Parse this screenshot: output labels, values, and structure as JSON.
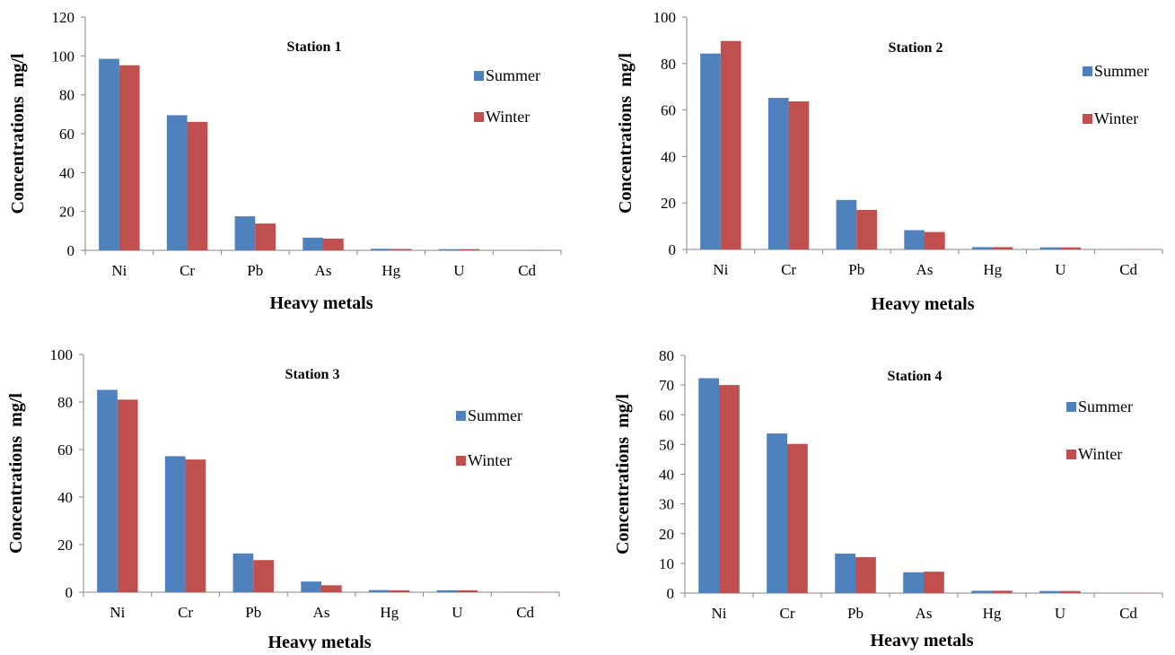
{
  "chart_data": [
    {
      "type": "bar",
      "title": "Station 1",
      "xlabel": "Heavy metals",
      "ylabel": "Concentrations  mg/l",
      "ylim": [
        0,
        120
      ],
      "yticks": [
        0,
        20,
        40,
        60,
        80,
        100,
        120
      ],
      "categories": [
        "Ni",
        "Cr",
        "Pb",
        "As",
        "Hg",
        "U",
        "Cd"
      ],
      "series": [
        {
          "name": "Summer",
          "color": "#4f81bd",
          "values": [
            98.5,
            69.5,
            17.5,
            6.5,
            0.8,
            0.6,
            0.1
          ]
        },
        {
          "name": "Winter",
          "color": "#c0504d",
          "values": [
            95.2,
            66.1,
            13.8,
            6.0,
            0.7,
            0.6,
            0.1
          ]
        }
      ],
      "legend": "right",
      "grid": false
    },
    {
      "type": "bar",
      "title": "Station 2",
      "xlabel": "Heavy metals",
      "ylabel": "Concentrations  mg/l",
      "ylim": [
        0,
        100
      ],
      "yticks": [
        0,
        20,
        40,
        60,
        80,
        100
      ],
      "categories": [
        "Ni",
        "Cr",
        "Pb",
        "As",
        "Hg",
        "U",
        "Cd"
      ],
      "series": [
        {
          "name": "Summer",
          "color": "#4f81bd",
          "values": [
            84.3,
            65.2,
            21.3,
            8.3,
            1.0,
            0.9,
            0.1
          ]
        },
        {
          "name": "Winter",
          "color": "#c0504d",
          "values": [
            89.7,
            63.7,
            17.0,
            7.5,
            1.0,
            0.9,
            0.1
          ]
        }
      ],
      "legend": "right",
      "grid": false
    },
    {
      "type": "bar",
      "title": "Station 3",
      "xlabel": "Heavy metals",
      "ylabel": "Concentrations  mg/l",
      "ylim": [
        0,
        100
      ],
      "yticks": [
        0,
        20,
        40,
        60,
        80,
        100
      ],
      "categories": [
        "Ni",
        "Cr",
        "Pb",
        "As",
        "Hg",
        "U",
        "Cd"
      ],
      "series": [
        {
          "name": "Summer",
          "color": "#4f81bd",
          "values": [
            85.1,
            57.2,
            16.3,
            4.5,
            0.9,
            0.8,
            0.1
          ]
        },
        {
          "name": "Winter",
          "color": "#c0504d",
          "values": [
            81.0,
            55.8,
            13.5,
            2.9,
            0.8,
            0.8,
            0.1
          ]
        }
      ],
      "legend": "right",
      "grid": false
    },
    {
      "type": "bar",
      "title": "Station 4",
      "xlabel": "Heavy metals",
      "ylabel": "Concentrations  mg/l",
      "ylim": [
        0,
        80
      ],
      "yticks": [
        0,
        10,
        20,
        30,
        40,
        50,
        60,
        70,
        80
      ],
      "categories": [
        "Ni",
        "Cr",
        "Pb",
        "As",
        "Hg",
        "U",
        "Cd"
      ],
      "series": [
        {
          "name": "Summer",
          "color": "#4f81bd",
          "values": [
            72.3,
            53.7,
            13.3,
            7.0,
            0.8,
            0.7,
            0.1
          ]
        },
        {
          "name": "Winter",
          "color": "#c0504d",
          "values": [
            70.0,
            50.2,
            12.1,
            7.2,
            0.8,
            0.7,
            0.1
          ]
        }
      ],
      "legend": "right",
      "grid": false
    }
  ]
}
